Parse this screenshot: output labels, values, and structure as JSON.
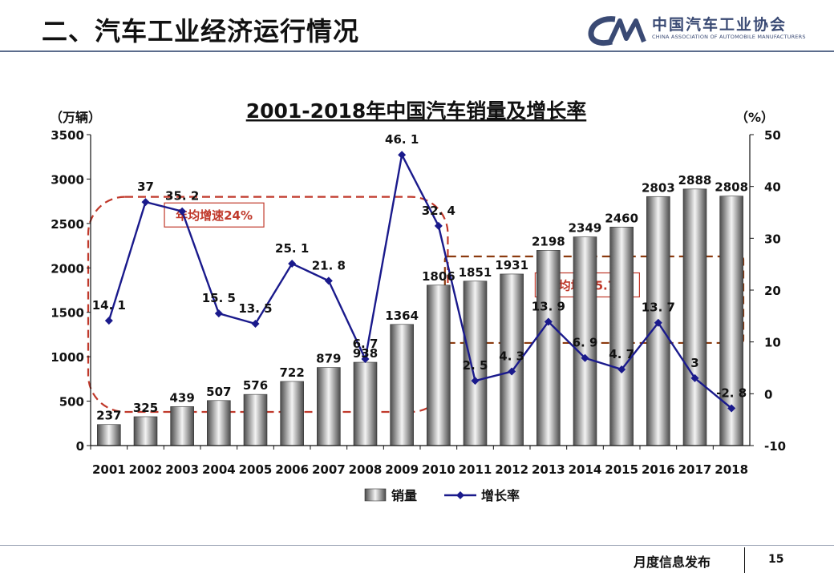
{
  "header": {
    "slide_title": "二、汽车工业经济运行情况",
    "logo_name": "中国汽车工业协会",
    "logo_sub": "CHINA ASSOCIATION OF AUTOMOBILE MANUFACTURERS"
  },
  "footer": {
    "text": "月度信息发布",
    "page": "15"
  },
  "colors": {
    "line": "#1a1a8c",
    "marker": "#1a1a8c",
    "bar_dark": "#5a5a5a",
    "bar_light": "#f2f2f2",
    "annotation": "#c0392b",
    "rule": "#5b6c8c"
  },
  "chart_data": {
    "type": "bar",
    "title": "2001-2018年中国汽车销量及增长率",
    "ylabel_left": "（万辆）",
    "ylabel_right": "（%）",
    "categories": [
      "2001",
      "2002",
      "2003",
      "2004",
      "2005",
      "2006",
      "2007",
      "2008",
      "2009",
      "2010",
      "2011",
      "2012",
      "2013",
      "2014",
      "2015",
      "2016",
      "2017",
      "2018"
    ],
    "series": [
      {
        "name": "销量",
        "type": "bar",
        "axis": "left",
        "values": [
          237,
          325,
          439,
          507,
          576,
          722,
          879,
          938,
          1364,
          1806,
          1851,
          1931,
          2198,
          2349,
          2460,
          2803,
          2888,
          2808
        ],
        "labels": [
          "237",
          "325",
          "439",
          "507",
          "576",
          "722",
          "879",
          "938",
          "1364",
          "1806",
          "1851",
          "1931",
          "2198",
          "2349",
          "2460",
          "2803",
          "2888",
          "2808"
        ]
      },
      {
        "name": "增长率",
        "type": "line",
        "axis": "right",
        "values": [
          14.1,
          37,
          35.2,
          15.5,
          13.5,
          25.1,
          21.8,
          6.7,
          46.1,
          32.4,
          2.5,
          4.3,
          13.9,
          6.9,
          4.7,
          13.7,
          3,
          -2.8
        ],
        "labels": [
          "14. 1",
          "37",
          "35. 2",
          "15. 5",
          "13. 5",
          "25. 1",
          "21. 8",
          "6. 7",
          "46. 1",
          "32. 4",
          "2. 5",
          "4. 3",
          "13. 9",
          "6. 9",
          "4. 7",
          "13. 7",
          "3",
          "-2. 8"
        ]
      }
    ],
    "y_left": {
      "min": 0,
      "max": 3500,
      "ticks": [
        0,
        500,
        1000,
        1500,
        2000,
        2500,
        3000,
        3500
      ]
    },
    "y_right": {
      "min": -10,
      "max": 50,
      "ticks": [
        -10,
        0,
        10,
        20,
        30,
        40,
        50
      ]
    },
    "annotations": [
      {
        "text": "年均增速24%",
        "span": [
          "2001",
          "2010"
        ]
      },
      {
        "text": "年均增速5.7%",
        "span": [
          "2011",
          "2018"
        ]
      }
    ],
    "legend_position": "bottom-center",
    "grid": false
  }
}
